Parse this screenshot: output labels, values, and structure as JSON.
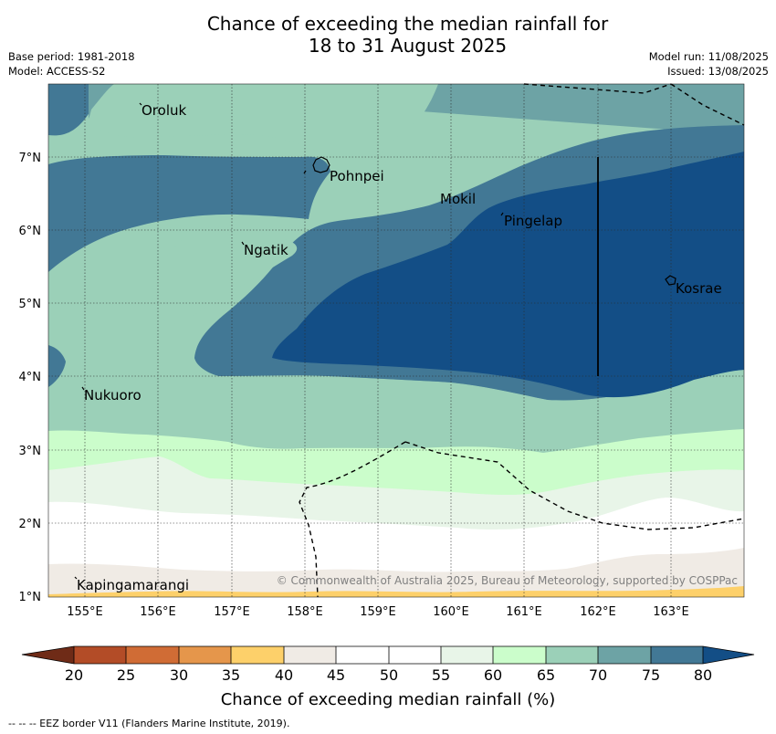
{
  "title": {
    "line1": "Chance of exceeding the median rainfall for",
    "line2": "18 to 31 August 2025"
  },
  "meta": {
    "base_period": "Base period: 1981-2018",
    "model": "Model: ACCESS-S2",
    "model_run": "Model run: 11/08/2025",
    "issued": "Issued: 13/08/2025"
  },
  "map": {
    "lon_labels": [
      "155°E",
      "156°E",
      "157°E",
      "158°E",
      "159°E",
      "160°E",
      "161°E",
      "162°E",
      "163°E"
    ],
    "lat_labels": [
      "7°N",
      "6°N",
      "5°N",
      "4°N",
      "3°N",
      "2°N",
      "1°N"
    ],
    "places": {
      "oroluk": "Oroluk",
      "pohnpei": "Pohnpei",
      "mokil": "Mokil",
      "pingelap": "Pingelap",
      "ngatik": "Ngatik",
      "kosrae": "Kosrae",
      "nukuoro": "Nukuoro",
      "kapingamarangi": "Kapingamarangi"
    },
    "copyright": "© Commonwealth of Australia 2025, Bureau of Meteorology, supported by COSPPac",
    "colors": {
      "c35": "#fdd06a",
      "c40": "#f0ebe5",
      "c45": "#ffffff",
      "c55": "#e8f5e8",
      "c60": "#cbfdcb",
      "c65": "#9bd0b8",
      "c70": "#6da3a5",
      "c75": "#427895",
      "c80": "#134e86"
    }
  },
  "colorbar": {
    "ticks": [
      "20",
      "25",
      "30",
      "35",
      "40",
      "45",
      "50",
      "55",
      "60",
      "65",
      "70",
      "75",
      "80"
    ],
    "colors": [
      "#6f2b17",
      "#b34c27",
      "#d06c35",
      "#e5964b",
      "#fdd06a",
      "#f0ebe5",
      "#ffffff",
      "#ffffff",
      "#e8f5e8",
      "#cbfdcb",
      "#9bd0b8",
      "#6da3a5",
      "#427895",
      "#134e86"
    ],
    "label": "Chance of exceeding median rainfall (%)"
  },
  "footer": "--  --  -- EEZ border V11 (Flanders Marine Institute, 2019)."
}
